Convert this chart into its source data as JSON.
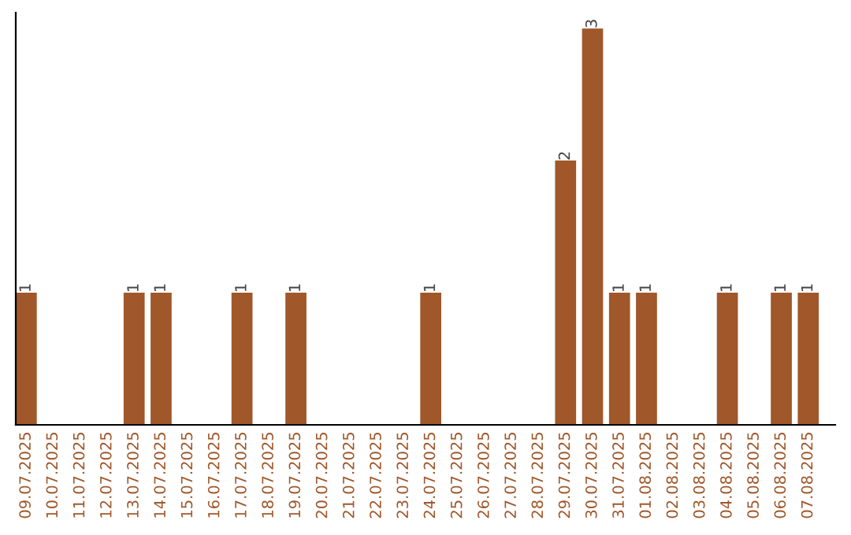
{
  "chart_data": {
    "type": "bar",
    "categories": [
      "09.07.2025",
      "10.07.2025",
      "11.07.2025",
      "12.07.2025",
      "13.07.2025",
      "14.07.2025",
      "15.07.2025",
      "16.07.2025",
      "17.07.2025",
      "18.07.2025",
      "19.07.2025",
      "20.07.2025",
      "21.07.2025",
      "22.07.2025",
      "23.07.2025",
      "24.07.2025",
      "25.07.2025",
      "26.07.2025",
      "27.07.2025",
      "28.07.2025",
      "29.07.2025",
      "30.07.2025",
      "31.07.2025",
      "01.08.2025",
      "02.08.2025",
      "03.08.2025",
      "04.08.2025",
      "05.08.2025",
      "06.08.2025",
      "07.08.2025"
    ],
    "values": [
      1,
      0,
      0,
      0,
      1,
      1,
      0,
      0,
      1,
      0,
      1,
      0,
      0,
      0,
      0,
      1,
      0,
      0,
      0,
      0,
      2,
      3,
      1,
      1,
      0,
      0,
      1,
      0,
      1,
      1
    ],
    "value_labels": [
      "1",
      null,
      null,
      null,
      "1",
      "1",
      null,
      null,
      "1",
      null,
      "1",
      null,
      null,
      null,
      null,
      "1",
      null,
      null,
      null,
      null,
      "2",
      "3",
      "1",
      "1",
      null,
      null,
      "1",
      null,
      "1",
      "1"
    ],
    "color": "#a0572a",
    "grid": false,
    "legend": false
  }
}
